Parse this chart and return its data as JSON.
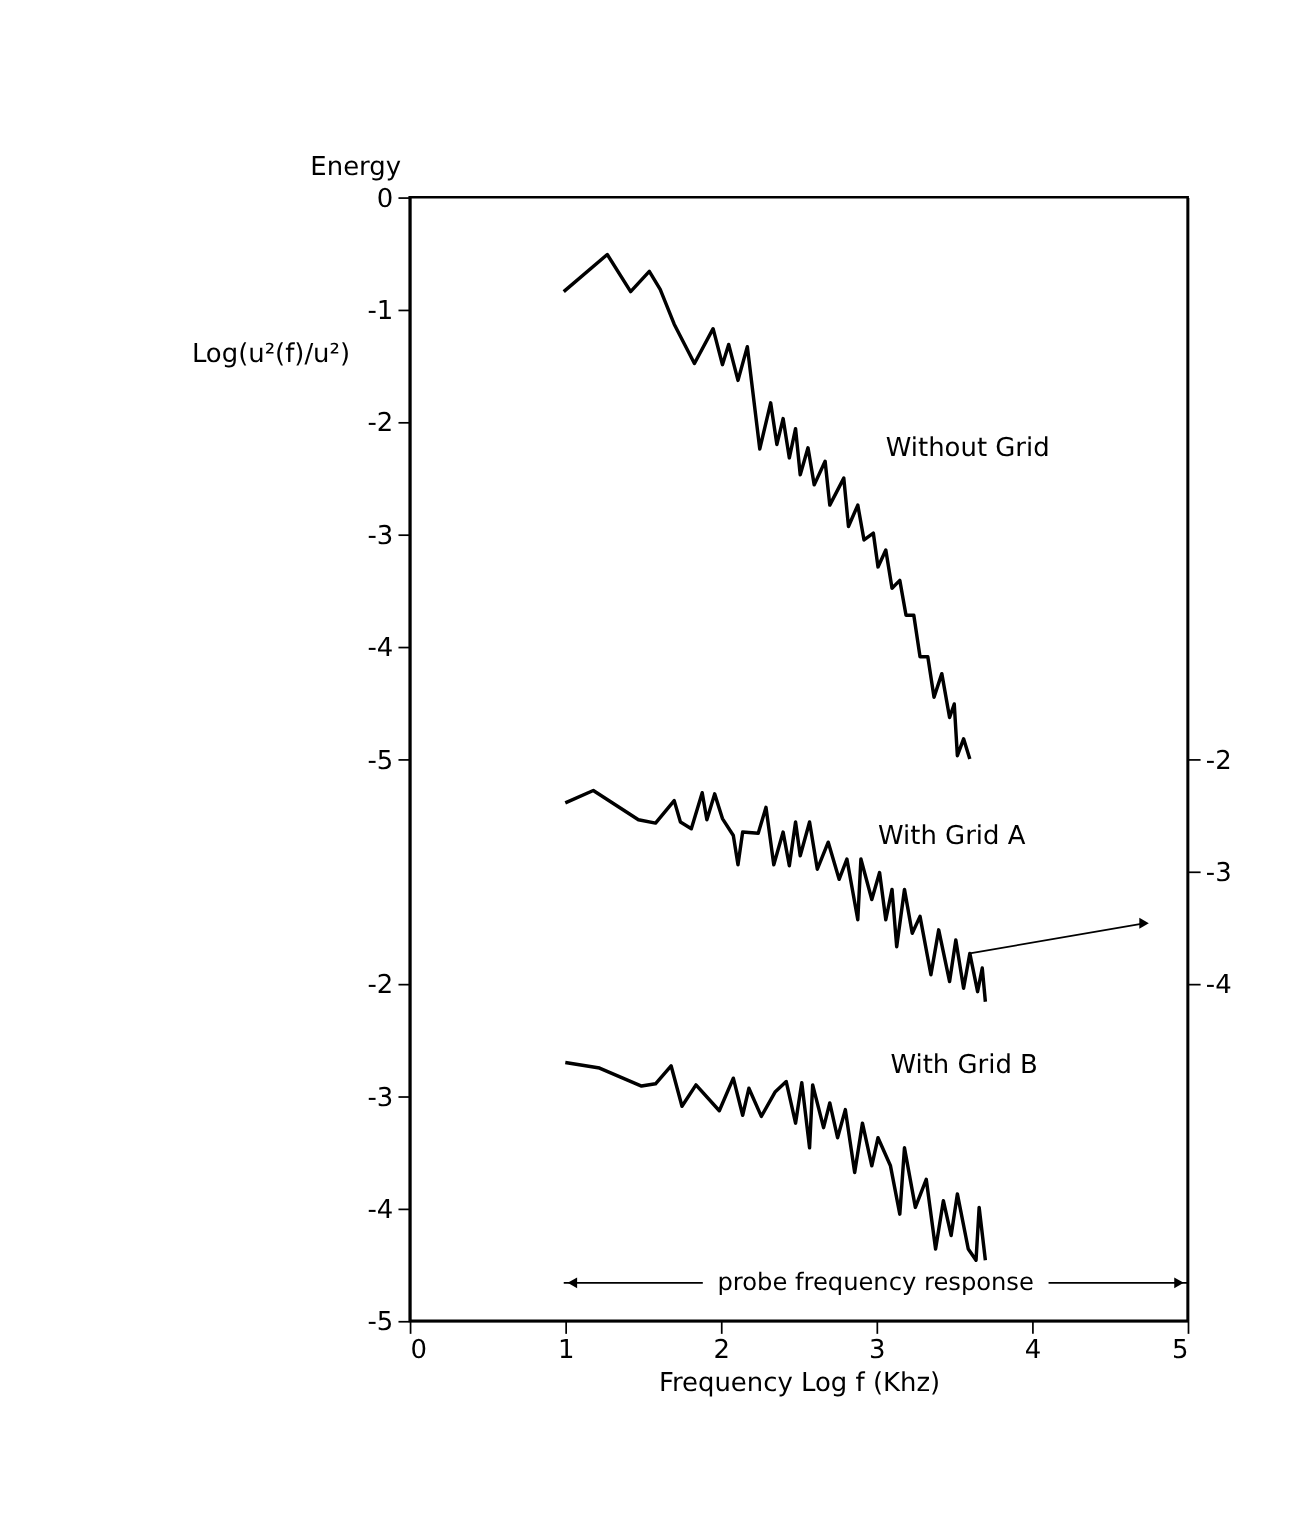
{
  "chart_data": {
    "type": "line",
    "xlabel": "Frequency  Log f (Khz)",
    "ylabel": "Log(u²(f)/u²)",
    "annotations": [
      "Energy",
      "probe frequency response"
    ],
    "xlim": [
      0,
      5
    ],
    "xticks": [
      0,
      1,
      2,
      3,
      4,
      5
    ],
    "ylim": [
      -10,
      0
    ],
    "yticks": [
      0,
      -1,
      -2,
      -3,
      -4,
      -5
    ],
    "y2lim": [
      -7,
      3
    ],
    "y2ticks": [
      -2,
      -3,
      -4
    ],
    "y3lim": [
      -5,
      5
    ],
    "y3ticks": [
      -2,
      -3,
      -4,
      -5
    ],
    "grid": false,
    "marker": "none",
    "line_style": "solid",
    "series": [
      {
        "name": "Without Grid",
        "color": "#000000",
        "x": [
          0.99,
          1.27,
          1.42,
          1.54,
          1.61,
          1.7,
          1.83,
          1.95,
          2.01,
          2.05,
          2.11,
          2.17,
          2.25,
          2.32,
          2.36,
          2.4,
          2.44,
          2.48,
          2.51,
          2.56,
          2.6,
          2.67,
          2.7,
          2.79,
          2.82,
          2.88,
          2.92,
          2.98,
          3.01,
          3.06,
          3.1,
          3.15,
          3.19,
          3.24,
          3.28,
          3.33,
          3.37,
          3.42,
          3.47,
          3.5,
          3.52,
          3.56,
          3.6
        ],
        "values": [
          -0.84,
          -0.51,
          -0.84,
          -0.66,
          -0.82,
          -1.13,
          -1.48,
          -1.17,
          -1.49,
          -1.31,
          -1.63,
          -1.33,
          -2.24,
          -1.83,
          -2.2,
          -1.97,
          -2.32,
          -2.06,
          -2.47,
          -2.23,
          -2.56,
          -2.35,
          -2.74,
          -2.5,
          -2.93,
          -2.74,
          -3.05,
          -2.99,
          -3.29,
          -3.14,
          -3.48,
          -3.41,
          -3.72,
          -3.72,
          -4.09,
          -4.09,
          -4.45,
          -4.24,
          -4.63,
          -4.51,
          -4.97,
          -4.82,
          -5.0
        ]
      },
      {
        "name": "With Grid A",
        "color": "#000000",
        "axis": "y2",
        "x": [
          1.0,
          1.18,
          1.47,
          1.58,
          1.7,
          1.74,
          1.81,
          1.88,
          1.91,
          1.96,
          2.01,
          2.08,
          2.11,
          2.14,
          2.24,
          2.29,
          2.34,
          2.4,
          2.44,
          2.48,
          2.51,
          2.57,
          2.62,
          2.69,
          2.76,
          2.81,
          2.88,
          2.9,
          2.97,
          3.02,
          3.06,
          3.1,
          3.13,
          3.18,
          3.23,
          3.28,
          3.35,
          3.4,
          3.47,
          3.51,
          3.56,
          3.6,
          3.65,
          3.68,
          3.7
        ],
        "values": [
          -2.39,
          -2.28,
          -2.54,
          -2.57,
          -2.37,
          -2.56,
          -2.62,
          -2.3,
          -2.54,
          -2.31,
          -2.53,
          -2.68,
          -2.94,
          -2.65,
          -2.66,
          -2.43,
          -2.94,
          -2.65,
          -2.95,
          -2.56,
          -2.86,
          -2.56,
          -2.98,
          -2.74,
          -3.07,
          -2.89,
          -3.43,
          -2.89,
          -3.25,
          -3.01,
          -3.43,
          -3.16,
          -3.67,
          -3.16,
          -3.55,
          -3.4,
          -3.92,
          -3.52,
          -3.98,
          -3.61,
          -4.04,
          -3.73,
          -4.07,
          -3.86,
          -4.16
        ]
      },
      {
        "name": "With Grid B",
        "color": "#000000",
        "axis": "y3",
        "x": [
          1.0,
          1.22,
          1.49,
          1.58,
          1.68,
          1.75,
          1.84,
          1.99,
          2.08,
          2.14,
          2.18,
          2.26,
          2.35,
          2.42,
          2.48,
          2.52,
          2.57,
          2.59,
          2.66,
          2.7,
          2.75,
          2.8,
          2.86,
          2.91,
          2.97,
          3.01,
          3.09,
          3.15,
          3.18,
          3.25,
          3.32,
          3.38,
          3.43,
          3.48,
          3.52,
          3.59,
          3.64,
          3.66,
          3.7
        ],
        "values": [
          -2.7,
          -2.75,
          -2.91,
          -2.89,
          -2.73,
          -3.09,
          -2.9,
          -3.13,
          -2.84,
          -3.17,
          -2.93,
          -3.18,
          -2.96,
          -2.87,
          -3.24,
          -2.88,
          -3.46,
          -2.9,
          -3.28,
          -3.06,
          -3.37,
          -3.12,
          -3.68,
          -3.24,
          -3.62,
          -3.37,
          -3.62,
          -4.05,
          -3.46,
          -3.99,
          -3.74,
          -4.36,
          -3.93,
          -4.24,
          -3.87,
          -4.36,
          -4.46,
          -3.99,
          -4.46
        ]
      }
    ]
  }
}
